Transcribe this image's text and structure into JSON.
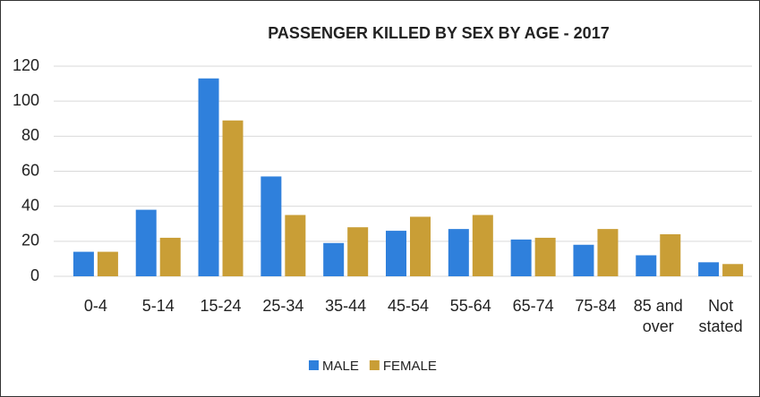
{
  "chart_data": {
    "type": "bar",
    "title": "PASSENGER KILLED BY SEX BY AGE - 2017",
    "categories": [
      "0-4",
      "5-14",
      "15-24",
      "25-34",
      "35-44",
      "45-54",
      "55-64",
      "65-74",
      "75-84",
      "85 and over",
      "Not stated"
    ],
    "series": [
      {
        "name": "MALE",
        "color": "#2f80dc",
        "values": [
          14,
          38,
          113,
          57,
          19,
          26,
          27,
          21,
          18,
          12,
          8
        ]
      },
      {
        "name": "FEMALE",
        "color": "#c99e36",
        "values": [
          14,
          22,
          89,
          35,
          28,
          34,
          35,
          22,
          27,
          24,
          7
        ]
      }
    ],
    "ylim": [
      0,
      120
    ],
    "yticks": [
      0,
      20,
      40,
      60,
      80,
      100,
      120
    ],
    "grid": true,
    "legend": "bottom"
  }
}
